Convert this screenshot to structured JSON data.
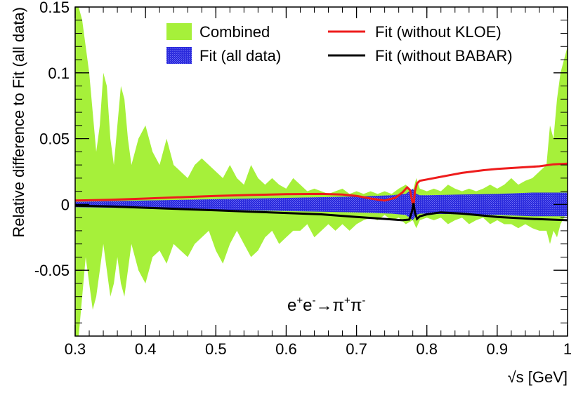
{
  "chart_data": {
    "type": "area",
    "title": "",
    "xlabel": "√s   [GeV]",
    "ylabel": "Relative difference to Fit (all data)",
    "xlim": [
      0.3,
      1.0
    ],
    "ylim": [
      -0.1,
      0.15
    ],
    "x_ticks": [
      0.3,
      0.4,
      0.5,
      0.6,
      0.7,
      0.8,
      0.9,
      1.0
    ],
    "x_tick_labels": [
      "0.3",
      "0.4",
      "0.5",
      "0.6",
      "0.7",
      "0.8",
      "0.9",
      "1"
    ],
    "y_ticks": [
      -0.05,
      0,
      0.05,
      0.1,
      0.15
    ],
    "y_tick_labels": [
      "-0.05",
      "0",
      "0.05",
      "0.1",
      "0.15"
    ],
    "annotation": {
      "lhs": "e",
      "lhs_sup": "+",
      "lhs2": "e",
      "lhs2_sup": "-",
      "arrow": "→",
      "rhs": "π",
      "rhs_sup": "+",
      "rhs2": "π",
      "rhs2_sup": "-"
    },
    "colors": {
      "combined": "#a6f03a",
      "fit_band": "#2a2adc",
      "without_kloe": "#ee1c1c",
      "without_babar": "#000000"
    },
    "series": [
      {
        "name": "Combined",
        "kind": "band",
        "x": [
          0.3,
          0.305,
          0.31,
          0.315,
          0.32,
          0.325,
          0.33,
          0.335,
          0.34,
          0.345,
          0.35,
          0.355,
          0.36,
          0.365,
          0.37,
          0.375,
          0.38,
          0.39,
          0.4,
          0.41,
          0.42,
          0.43,
          0.44,
          0.45,
          0.46,
          0.47,
          0.48,
          0.49,
          0.5,
          0.51,
          0.52,
          0.53,
          0.54,
          0.55,
          0.56,
          0.57,
          0.58,
          0.59,
          0.6,
          0.61,
          0.62,
          0.63,
          0.64,
          0.65,
          0.66,
          0.67,
          0.68,
          0.69,
          0.7,
          0.71,
          0.72,
          0.73,
          0.74,
          0.75,
          0.76,
          0.77,
          0.78,
          0.785,
          0.79,
          0.8,
          0.81,
          0.82,
          0.83,
          0.84,
          0.85,
          0.86,
          0.87,
          0.88,
          0.89,
          0.9,
          0.91,
          0.92,
          0.93,
          0.94,
          0.95,
          0.96,
          0.97,
          0.975,
          0.98,
          0.985,
          0.99,
          0.995,
          1.0
        ],
        "upper": [
          0.15,
          0.15,
          0.14,
          0.12,
          0.1,
          0.07,
          0.04,
          0.06,
          0.1,
          0.09,
          0.05,
          0.03,
          0.06,
          0.09,
          0.08,
          0.05,
          0.03,
          0.05,
          0.06,
          0.04,
          0.03,
          0.05,
          0.03,
          0.025,
          0.02,
          0.03,
          0.035,
          0.03,
          0.025,
          0.02,
          0.03,
          0.02,
          0.015,
          0.03,
          0.02,
          0.015,
          0.02,
          0.015,
          0.012,
          0.02,
          0.015,
          0.01,
          0.012,
          0.01,
          0.008,
          0.01,
          0.012,
          0.008,
          0.01,
          0.008,
          0.01,
          0.008,
          0.01,
          0.008,
          0.012,
          0.015,
          0.01,
          0.02,
          0.012,
          0.01,
          0.012,
          0.01,
          0.015,
          0.012,
          0.01,
          0.012,
          0.01,
          0.012,
          0.015,
          0.012,
          0.015,
          0.02,
          0.015,
          0.018,
          0.02,
          0.025,
          0.03,
          0.06,
          0.05,
          0.08,
          0.1,
          0.11,
          0.12
        ],
        "lower": [
          -0.1,
          -0.1,
          -0.07,
          -0.04,
          -0.06,
          -0.08,
          -0.07,
          -0.05,
          -0.03,
          -0.05,
          -0.07,
          -0.06,
          -0.04,
          -0.06,
          -0.07,
          -0.05,
          -0.03,
          -0.05,
          -0.06,
          -0.04,
          -0.035,
          -0.045,
          -0.03,
          -0.035,
          -0.04,
          -0.03,
          -0.025,
          -0.02,
          -0.035,
          -0.045,
          -0.03,
          -0.02,
          -0.03,
          -0.04,
          -0.035,
          -0.025,
          -0.02,
          -0.03,
          -0.025,
          -0.02,
          -0.02,
          -0.015,
          -0.025,
          -0.02,
          -0.015,
          -0.02,
          -0.015,
          -0.02,
          -0.015,
          -0.012,
          -0.01,
          -0.012,
          -0.008,
          -0.012,
          -0.01,
          -0.015,
          -0.012,
          -0.018,
          -0.012,
          -0.01,
          -0.012,
          -0.01,
          -0.015,
          -0.012,
          -0.01,
          -0.015,
          -0.012,
          -0.01,
          -0.015,
          -0.012,
          -0.015,
          -0.015,
          -0.018,
          -0.015,
          -0.018,
          -0.02,
          -0.02,
          -0.03,
          -0.02,
          -0.025,
          -0.015,
          -0.01,
          -0.005
        ]
      },
      {
        "name": "Fit (all data)",
        "kind": "band",
        "x": [
          0.3,
          0.4,
          0.5,
          0.6,
          0.7,
          0.75,
          0.77,
          0.78,
          0.785,
          0.79,
          0.8,
          0.85,
          0.9,
          0.95,
          1.0
        ],
        "upper": [
          0.002,
          0.003,
          0.004,
          0.005,
          0.006,
          0.007,
          0.008,
          0.012,
          0.008,
          0.007,
          0.007,
          0.0075,
          0.008,
          0.009,
          0.009
        ],
        "lower": [
          -0.002,
          -0.003,
          -0.004,
          -0.005,
          -0.006,
          -0.007,
          -0.008,
          -0.012,
          -0.008,
          -0.007,
          -0.007,
          -0.0075,
          -0.008,
          -0.009,
          -0.009
        ]
      },
      {
        "name": "Fit (without KLOE)",
        "kind": "line",
        "x": [
          0.3,
          0.35,
          0.4,
          0.45,
          0.5,
          0.55,
          0.6,
          0.65,
          0.68,
          0.7,
          0.72,
          0.74,
          0.755,
          0.765,
          0.772,
          0.776,
          0.779,
          0.781,
          0.783,
          0.786,
          0.79,
          0.8,
          0.82,
          0.85,
          0.88,
          0.9,
          0.93,
          0.96,
          0.98,
          1.0
        ],
        "y": [
          0.003,
          0.0035,
          0.0045,
          0.0055,
          0.0065,
          0.0072,
          0.0078,
          0.008,
          0.0075,
          0.0065,
          0.0045,
          0.003,
          0.005,
          0.009,
          0.013,
          0.011,
          0.003,
          -0.002,
          0.01,
          0.016,
          0.018,
          0.019,
          0.021,
          0.024,
          0.026,
          0.027,
          0.028,
          0.029,
          0.0305,
          0.031
        ]
      },
      {
        "name": "Fit (without BABAR)",
        "kind": "line",
        "x": [
          0.3,
          0.35,
          0.4,
          0.45,
          0.5,
          0.55,
          0.6,
          0.65,
          0.7,
          0.74,
          0.765,
          0.775,
          0.779,
          0.781,
          0.783,
          0.786,
          0.79,
          0.8,
          0.82,
          0.85,
          0.88,
          0.9,
          0.95,
          1.0
        ],
        "y": [
          -0.001,
          -0.0015,
          -0.0025,
          -0.0035,
          -0.0045,
          -0.0055,
          -0.0065,
          -0.0075,
          -0.0095,
          -0.011,
          -0.012,
          -0.0115,
          -0.005,
          0.001,
          -0.006,
          -0.011,
          -0.009,
          -0.0075,
          -0.006,
          -0.007,
          -0.0085,
          -0.0095,
          -0.011,
          -0.012
        ]
      }
    ],
    "legend": [
      {
        "label": "Combined",
        "series": "Combined"
      },
      {
        "label": "Fit (without KLOE)",
        "series": "Fit (without KLOE)"
      },
      {
        "label": "Fit (all data)",
        "series": "Fit (all data)"
      },
      {
        "label": "Fit (without BABAR)",
        "series": "Fit (without BABAR)"
      }
    ],
    "legend_placement": "top"
  }
}
